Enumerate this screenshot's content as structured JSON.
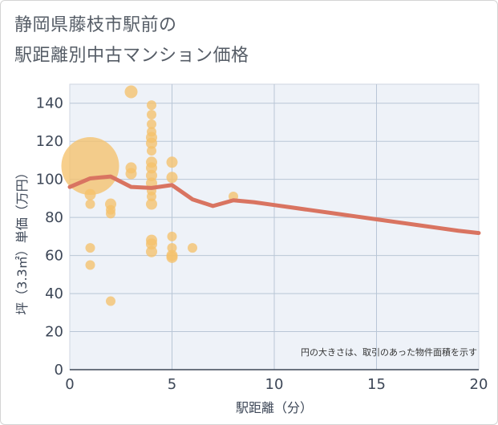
{
  "title_line1": "静岡県藤枝市駅前の",
  "title_line2": "駅距離別中古マンション価格",
  "chart_data": {
    "type": "scatter",
    "title": "静岡県藤枝市駅前の駅距離別中古マンション価格",
    "xlabel": "駅距離（分）",
    "ylabel": "坪（3.3㎡）単価（万円）",
    "xlim": [
      0,
      20
    ],
    "ylim": [
      0,
      150
    ],
    "xticks": [
      0,
      5,
      10,
      15,
      20
    ],
    "yticks": [
      0,
      20,
      40,
      60,
      80,
      100,
      120,
      140
    ],
    "grid": true,
    "annotation": "円の大きさは、取引のあった物件面積を示す",
    "bubble_color": "#f5c26b",
    "line_color": "#d97461",
    "bubbles": [
      {
        "x": 1,
        "y": 107,
        "size": 36
      },
      {
        "x": 1,
        "y": 92,
        "size": 7
      },
      {
        "x": 1,
        "y": 87,
        "size": 6
      },
      {
        "x": 1,
        "y": 64,
        "size": 6
      },
      {
        "x": 1,
        "y": 55,
        "size": 6
      },
      {
        "x": 2,
        "y": 87,
        "size": 7
      },
      {
        "x": 2,
        "y": 84,
        "size": 6
      },
      {
        "x": 2,
        "y": 82,
        "size": 6
      },
      {
        "x": 2,
        "y": 36,
        "size": 6
      },
      {
        "x": 3,
        "y": 146,
        "size": 8
      },
      {
        "x": 3,
        "y": 106,
        "size": 7
      },
      {
        "x": 3,
        "y": 103,
        "size": 7
      },
      {
        "x": 4,
        "y": 139,
        "size": 6
      },
      {
        "x": 4,
        "y": 134,
        "size": 6
      },
      {
        "x": 4,
        "y": 129,
        "size": 6
      },
      {
        "x": 4,
        "y": 125,
        "size": 6
      },
      {
        "x": 4,
        "y": 122,
        "size": 7
      },
      {
        "x": 4,
        "y": 119,
        "size": 7
      },
      {
        "x": 4,
        "y": 115,
        "size": 6
      },
      {
        "x": 4,
        "y": 109,
        "size": 7
      },
      {
        "x": 4,
        "y": 106,
        "size": 7
      },
      {
        "x": 4,
        "y": 102,
        "size": 7
      },
      {
        "x": 4,
        "y": 98,
        "size": 7
      },
      {
        "x": 4,
        "y": 94,
        "size": 6
      },
      {
        "x": 4,
        "y": 91,
        "size": 6
      },
      {
        "x": 4,
        "y": 87,
        "size": 7
      },
      {
        "x": 4,
        "y": 68,
        "size": 7
      },
      {
        "x": 4,
        "y": 66,
        "size": 7
      },
      {
        "x": 4,
        "y": 62,
        "size": 7
      },
      {
        "x": 5,
        "y": 109,
        "size": 7
      },
      {
        "x": 5,
        "y": 101,
        "size": 7
      },
      {
        "x": 5,
        "y": 70,
        "size": 6
      },
      {
        "x": 5,
        "y": 64,
        "size": 6
      },
      {
        "x": 5,
        "y": 60,
        "size": 7
      },
      {
        "x": 5,
        "y": 59,
        "size": 7
      },
      {
        "x": 6,
        "y": 64,
        "size": 6
      },
      {
        "x": 8,
        "y": 91,
        "size": 6
      }
    ],
    "trend_line": {
      "x": [
        0,
        1,
        2,
        3,
        4,
        5,
        6,
        7,
        8,
        9,
        10,
        11,
        12,
        13,
        14,
        15,
        16,
        17,
        18,
        19,
        20
      ],
      "y": [
        96,
        100.5,
        101.5,
        96,
        95.5,
        97,
        89.5,
        86,
        89,
        88,
        86.5,
        85,
        83.5,
        82,
        80.5,
        79,
        77.5,
        76,
        74.5,
        73,
        71.8
      ]
    }
  }
}
